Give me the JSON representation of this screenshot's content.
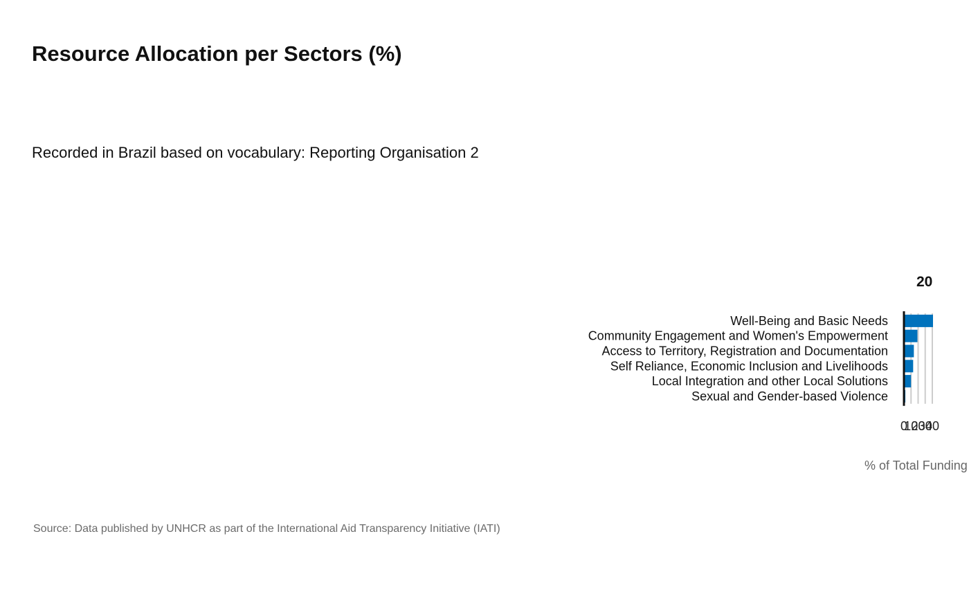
{
  "header": {
    "title": "Resource Allocation per Sectors (%)",
    "subtitle": "Recorded in Brazil based on vocabulary: Reporting Organisation 2"
  },
  "footer": {
    "source": "Source: Data published by UNHCR as part of the International Aid Transparency Initiative (IATI)"
  },
  "colors": {
    "bar": "#0072bc",
    "grid": "#cccccc",
    "axis": "#111111"
  },
  "chart_data": {
    "type": "bar",
    "orientation": "horizontal",
    "panel_title": "20",
    "categories": [
      "Well-Being and Basic Needs",
      "Community Engagement and Women's Empowerment",
      "Access to Territory, Registration and Documentation",
      "Self Reliance, Economic Inclusion and Livelihoods",
      "Local Integration and other Local Solutions",
      "Sexual and Gender-based Violence"
    ],
    "values": [
      41,
      19,
      14,
      13,
      10,
      2
    ],
    "xticks": [
      0,
      10,
      20,
      30,
      40
    ],
    "xlim": [
      0,
      41
    ],
    "xlabel": "% of Total Funding",
    "grid": true
  }
}
